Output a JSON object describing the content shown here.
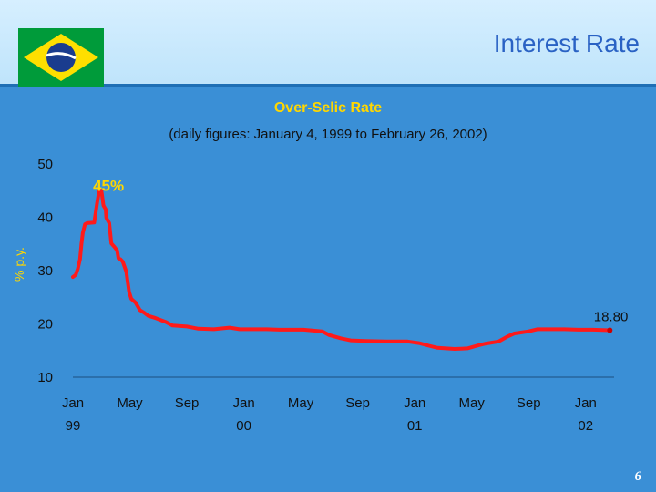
{
  "slide": {
    "title": "Interest Rate",
    "page_number": "6",
    "flag_icon": "brazil-flag-icon"
  },
  "colors": {
    "background": "#3a8fd6",
    "header": "#c8e8fb",
    "line": "#ff1a1a",
    "title_text": "#2a62c4",
    "chart_title": "#ffd700"
  },
  "chart_data": {
    "type": "line",
    "title": "Over-Selic Rate",
    "subtitle": "(daily figures: January 4, 1999 to February 26, 2002)",
    "ylabel": "% p.y.",
    "xlabel": "",
    "ylim": [
      10,
      50
    ],
    "yticks": [
      "50",
      "40",
      "30",
      "20",
      "10"
    ],
    "xticks": [
      {
        "line1": "Jan",
        "line2": "99",
        "x": 0
      },
      {
        "line1": "May",
        "line2": "",
        "x": 4
      },
      {
        "line1": "Sep",
        "line2": "",
        "x": 8
      },
      {
        "line1": "Jan",
        "line2": "00",
        "x": 12
      },
      {
        "line1": "May",
        "line2": "",
        "x": 16
      },
      {
        "line1": "Sep",
        "line2": "",
        "x": 20
      },
      {
        "line1": "Jan",
        "line2": "01",
        "x": 24
      },
      {
        "line1": "May",
        "line2": "",
        "x": 28
      },
      {
        "line1": "Sep",
        "line2": "",
        "x": 32
      },
      {
        "line1": "Jan",
        "line2": "02",
        "x": 36
      }
    ],
    "grid": false,
    "series": [
      {
        "name": "",
        "color": "#ff1a1a",
        "points": [
          [
            0.0,
            28.8
          ],
          [
            0.2,
            29.2
          ],
          [
            0.35,
            30.4
          ],
          [
            0.5,
            32.1
          ],
          [
            0.6,
            35.0
          ],
          [
            0.7,
            37.1
          ],
          [
            0.85,
            38.7
          ],
          [
            1.0,
            38.9
          ],
          [
            1.5,
            39.0
          ],
          [
            1.7,
            42.7
          ],
          [
            1.85,
            45.0
          ],
          [
            2.0,
            45.0
          ],
          [
            2.15,
            42.2
          ],
          [
            2.3,
            41.5
          ],
          [
            2.35,
            39.9
          ],
          [
            2.55,
            38.9
          ],
          [
            2.7,
            35.1
          ],
          [
            2.9,
            34.5
          ],
          [
            3.1,
            33.8
          ],
          [
            3.2,
            32.3
          ],
          [
            3.35,
            32.1
          ],
          [
            3.5,
            31.7
          ],
          [
            3.75,
            29.8
          ],
          [
            3.95,
            26.0
          ],
          [
            4.1,
            24.7
          ],
          [
            4.4,
            24.0
          ],
          [
            4.7,
            22.6
          ],
          [
            5.0,
            22.1
          ],
          [
            5.3,
            21.5
          ],
          [
            5.8,
            21.1
          ],
          [
            6.5,
            20.4
          ],
          [
            7.0,
            19.7
          ],
          [
            8.0,
            19.5
          ],
          [
            8.8,
            19.1
          ],
          [
            9.9,
            19.0
          ],
          [
            11.0,
            19.3
          ],
          [
            11.7,
            19.0
          ],
          [
            12.5,
            19.0
          ],
          [
            13.6,
            19.0
          ],
          [
            14.5,
            18.9
          ],
          [
            15.3,
            18.9
          ],
          [
            16.2,
            18.9
          ],
          [
            17.5,
            18.6
          ],
          [
            18.0,
            17.9
          ],
          [
            18.8,
            17.3
          ],
          [
            19.5,
            16.9
          ],
          [
            20.5,
            16.8
          ],
          [
            22.0,
            16.7
          ],
          [
            23.5,
            16.7
          ],
          [
            24.3,
            16.4
          ],
          [
            25.0,
            15.9
          ],
          [
            25.6,
            15.5
          ],
          [
            26.8,
            15.3
          ],
          [
            27.7,
            15.4
          ],
          [
            28.5,
            16.0
          ],
          [
            29.0,
            16.3
          ],
          [
            29.9,
            16.7
          ],
          [
            30.5,
            17.6
          ],
          [
            31.0,
            18.2
          ],
          [
            31.5,
            18.4
          ],
          [
            32.0,
            18.6
          ],
          [
            32.6,
            19.0
          ],
          [
            33.3,
            19.0
          ],
          [
            34.5,
            19.0
          ],
          [
            35.5,
            18.9
          ],
          [
            36.5,
            18.9
          ],
          [
            37.7,
            18.8
          ]
        ]
      }
    ],
    "annotations": [
      {
        "text": "45%",
        "x": 2.5,
        "y": 46.0
      },
      {
        "text": "18.80",
        "x": 37.7,
        "y": 21.5
      }
    ],
    "xlim": [
      0,
      38
    ]
  }
}
